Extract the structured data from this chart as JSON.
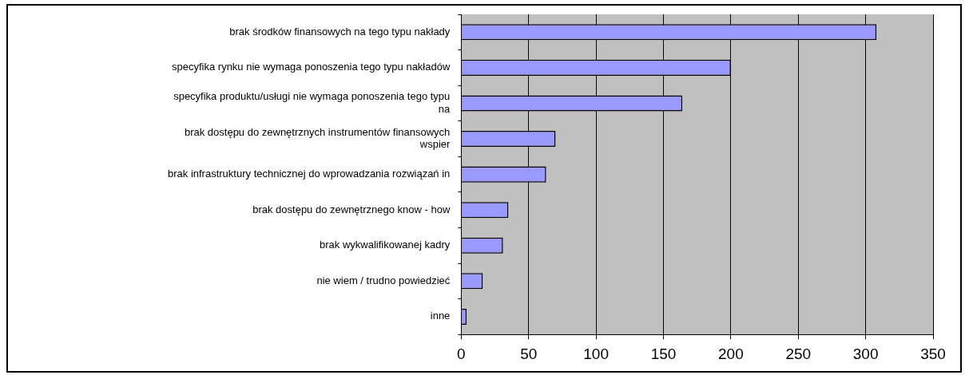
{
  "chart_data": {
    "type": "bar",
    "orientation": "horizontal",
    "categories": [
      "brak środków finansowych na tego typu nakłady",
      "specyfika rynku nie wymaga ponoszenia tego typu nakładów",
      "specyfika produktu/usługi nie wymaga ponoszenia tego typu na",
      "brak dostępu do zewnętrznych instrumentów finansowych wspier",
      "brak infrastruktury technicznej do wprowadzania rozwiązań in",
      "brak dostępu do zewnętrznego know - how",
      "brak wykwalifikowanej kadry",
      "nie wiem / trudno powiedzieć",
      "inne"
    ],
    "values": [
      308,
      200,
      164,
      70,
      63,
      35,
      31,
      16,
      4
    ],
    "color": "#9999ff",
    "xlim": [
      0,
      350
    ],
    "xticks": [
      0,
      50,
      100,
      150,
      200,
      250,
      300,
      350
    ],
    "grid": "x",
    "legend": false
  }
}
